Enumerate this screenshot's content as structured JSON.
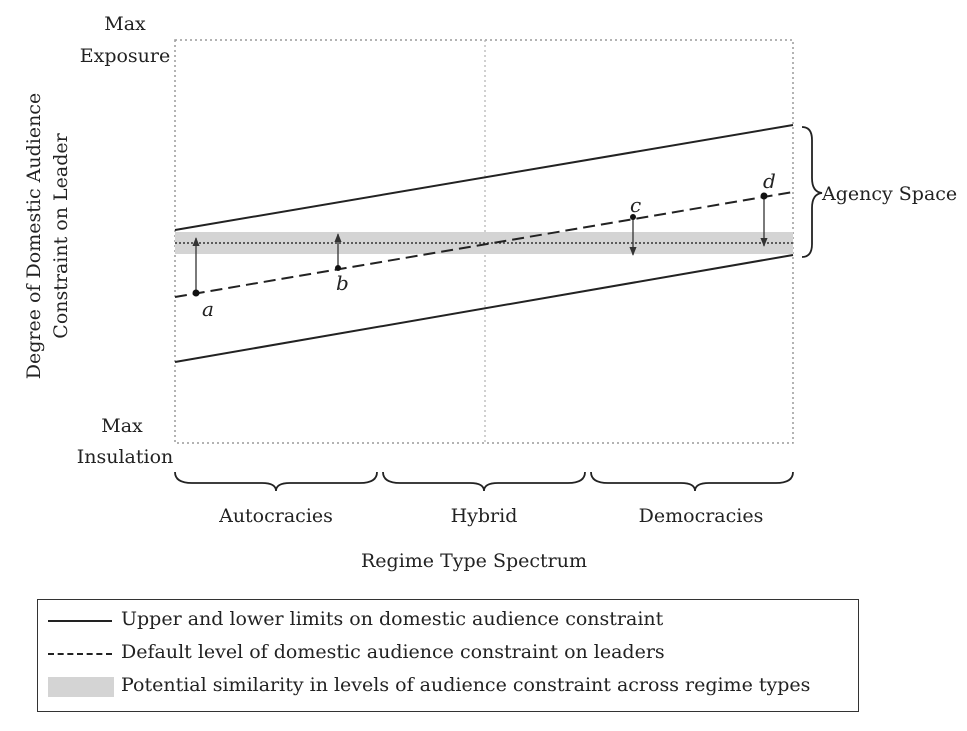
{
  "y_axis": {
    "label_line1": "Degree of Domestic Audience",
    "label_line2": "Constraint on Leader",
    "top_line1": "Max",
    "top_line2": "Exposure",
    "bottom_line1": "Max",
    "bottom_line2": "Insulation"
  },
  "x_axis": {
    "regimes": [
      "Autocracies",
      "Hybrid",
      "Democracies"
    ],
    "title": "Regime Type Spectrum"
  },
  "agency_space_label": "Agency Space",
  "points": [
    {
      "label": "a"
    },
    {
      "label": "b"
    },
    {
      "label": "c"
    },
    {
      "label": "d"
    }
  ],
  "legend": {
    "items": [
      {
        "text": "Upper and lower limits on domestic audience constraint",
        "symbol": "solid-line"
      },
      {
        "text": "Default level of domestic audience constraint on leaders",
        "symbol": "dashed-line"
      },
      {
        "text": "Potential similarity in levels of audience constraint across regime types",
        "symbol": "gray-band"
      }
    ]
  },
  "colors": {
    "band": "#d4d4d4",
    "line": "#222222",
    "grid": "#9a9a9a"
  }
}
